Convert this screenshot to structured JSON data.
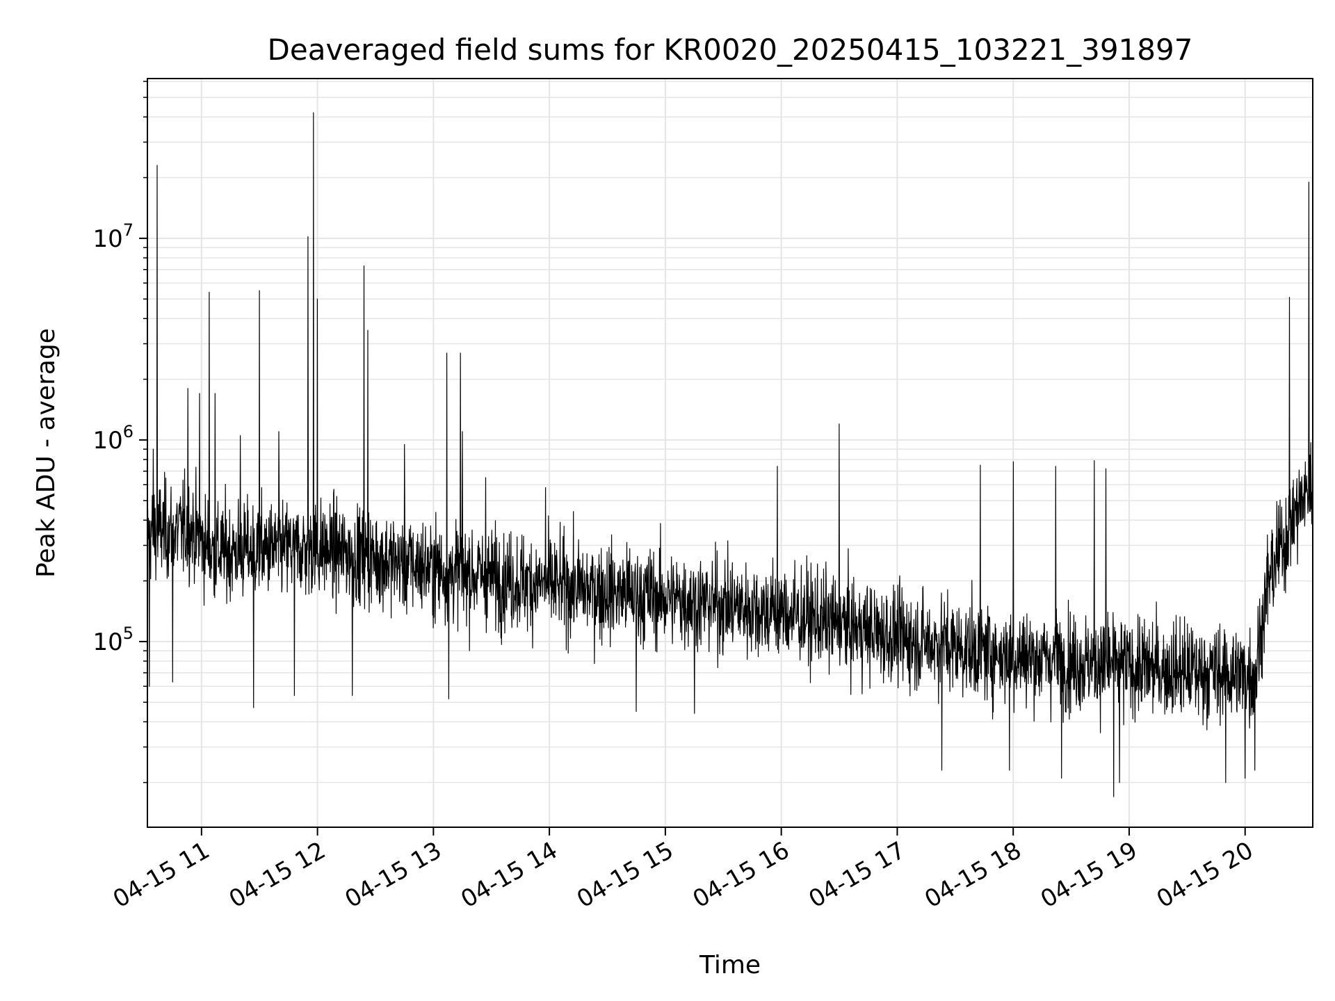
{
  "chart_data": {
    "type": "line",
    "title": "Deaveraged field sums for KR0020_20250415_103221_391897",
    "xlabel": "Time",
    "ylabel": "Peak ADU - average",
    "yscale": "log",
    "grid": true,
    "grid_minor": true,
    "line_color": "#000000",
    "grid_color": "#e5e5e5",
    "xlim": [
      "04-15 10:32",
      "04-15 20:35"
    ],
    "ylim": [
      12000,
      62000000
    ],
    "x_ticks": [
      {
        "t": "04-15 11:00",
        "label": "04-15 11"
      },
      {
        "t": "04-15 12:00",
        "label": "04-15 12"
      },
      {
        "t": "04-15 13:00",
        "label": "04-15 13"
      },
      {
        "t": "04-15 14:00",
        "label": "04-15 14"
      },
      {
        "t": "04-15 15:00",
        "label": "04-15 15"
      },
      {
        "t": "04-15 16:00",
        "label": "04-15 16"
      },
      {
        "t": "04-15 17:00",
        "label": "04-15 17"
      },
      {
        "t": "04-15 18:00",
        "label": "04-15 18"
      },
      {
        "t": "04-15 19:00",
        "label": "04-15 19"
      },
      {
        "t": "04-15 20:00",
        "label": "04-15 20"
      }
    ],
    "y_ticks": [
      {
        "value": 100000,
        "base": "10",
        "exp": "5"
      },
      {
        "value": 1000000,
        "base": "10",
        "exp": "6"
      },
      {
        "value": 10000000,
        "base": "10",
        "exp": "7"
      }
    ],
    "trend": [
      {
        "t": "04-15 10:32",
        "y": 350000
      },
      {
        "t": "04-15 10:55",
        "y": 360000
      },
      {
        "t": "04-15 11:05",
        "y": 280000
      },
      {
        "t": "04-15 12:00",
        "y": 290000
      },
      {
        "t": "04-15 13:00",
        "y": 230000
      },
      {
        "t": "04-15 14:00",
        "y": 190000
      },
      {
        "t": "04-15 15:00",
        "y": 165000
      },
      {
        "t": "04-15 16:00",
        "y": 140000
      },
      {
        "t": "04-15 17:00",
        "y": 105000
      },
      {
        "t": "04-15 18:00",
        "y": 85000
      },
      {
        "t": "04-15 19:00",
        "y": 75000
      },
      {
        "t": "04-15 20:05",
        "y": 68000
      },
      {
        "t": "04-15 20:12",
        "y": 200000
      },
      {
        "t": "04-15 20:25",
        "y": 420000
      },
      {
        "t": "04-15 20:35",
        "y": 600000
      }
    ],
    "spikes": [
      {
        "t": "04-15 10:37",
        "y": 23000000
      },
      {
        "t": "04-15 10:35",
        "y": 900000
      },
      {
        "t": "04-15 10:53",
        "y": 1800000
      },
      {
        "t": "04-15 10:59",
        "y": 1700000
      },
      {
        "t": "04-15 11:04",
        "y": 5400000
      },
      {
        "t": "04-15 11:07",
        "y": 1700000
      },
      {
        "t": "04-15 11:20",
        "y": 1050000
      },
      {
        "t": "04-15 11:30",
        "y": 5500000
      },
      {
        "t": "04-15 11:40",
        "y": 1100000
      },
      {
        "t": "04-15 11:55",
        "y": 10200000
      },
      {
        "t": "04-15 11:58",
        "y": 42000000
      },
      {
        "t": "04-15 12:00",
        "y": 5000000
      },
      {
        "t": "04-15 12:24",
        "y": 7300000
      },
      {
        "t": "04-15 12:26",
        "y": 3500000
      },
      {
        "t": "04-15 12:45",
        "y": 950000
      },
      {
        "t": "04-15 13:07",
        "y": 2700000
      },
      {
        "t": "04-15 13:14",
        "y": 2700000
      },
      {
        "t": "04-15 13:15",
        "y": 1100000
      },
      {
        "t": "04-15 13:27",
        "y": 650000
      },
      {
        "t": "04-15 13:58",
        "y": 580000
      },
      {
        "t": "04-15 15:58",
        "y": 740000
      },
      {
        "t": "04-15 16:30",
        "y": 1200000
      },
      {
        "t": "04-15 17:43",
        "y": 750000
      },
      {
        "t": "04-15 18:00",
        "y": 780000
      },
      {
        "t": "04-15 18:22",
        "y": 740000
      },
      {
        "t": "04-15 18:42",
        "y": 790000
      },
      {
        "t": "04-15 18:48",
        "y": 720000
      },
      {
        "t": "04-15 20:23",
        "y": 5100000
      },
      {
        "t": "04-15 20:33",
        "y": 19000000
      }
    ],
    "dips": [
      {
        "t": "04-15 10:33",
        "y": 60000
      },
      {
        "t": "04-15 10:45",
        "y": 63000
      },
      {
        "t": "04-15 11:27",
        "y": 47000
      },
      {
        "t": "04-15 11:48",
        "y": 54000
      },
      {
        "t": "04-15 12:18",
        "y": 54000
      },
      {
        "t": "04-15 13:08",
        "y": 52000
      },
      {
        "t": "04-15 14:45",
        "y": 45000
      },
      {
        "t": "04-15 15:15",
        "y": 44000
      },
      {
        "t": "04-15 17:23",
        "y": 23000
      },
      {
        "t": "04-15 17:58",
        "y": 23000
      },
      {
        "t": "04-15 18:25",
        "y": 21000
      },
      {
        "t": "04-15 18:52",
        "y": 17000
      },
      {
        "t": "04-15 18:55",
        "y": 20000
      },
      {
        "t": "04-15 19:50",
        "y": 20000
      },
      {
        "t": "04-15 20:00",
        "y": 21000
      },
      {
        "t": "04-15 20:05",
        "y": 23000
      }
    ]
  }
}
